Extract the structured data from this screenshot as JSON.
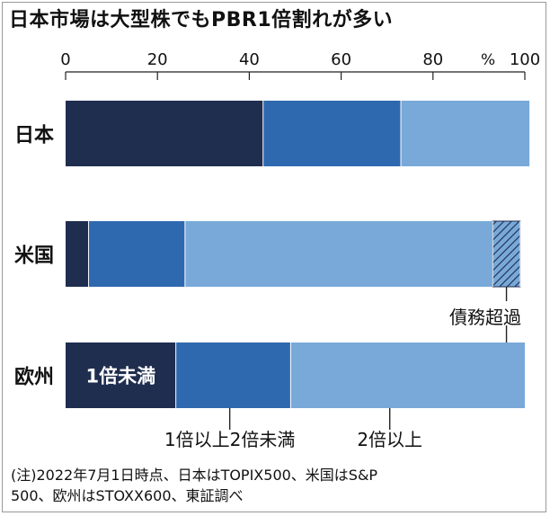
{
  "title": "日本市場は大型株でもPBR1倍割れが多い",
  "notes": [
    "(注)2022年7月1日時点、日本はTOPIX500、米国はS&P",
    "500、欧州はSTOXX600、東証調べ"
  ],
  "chart_data": {
    "type": "bar",
    "orientation": "horizontal",
    "stacked": true,
    "categories": [
      "日本",
      "米国",
      "欧州"
    ],
    "x_ticks": [
      "0",
      "20",
      "40",
      "60",
      "80",
      "100"
    ],
    "unit_label": "%",
    "xlim": [
      0,
      100
    ],
    "series": [
      {
        "name": "1倍未満",
        "color": "#1f2d4f",
        "values": [
          43,
          5,
          24
        ]
      },
      {
        "name": "1倍以上2倍未満",
        "color": "#2e69b0",
        "values": [
          30,
          21,
          25
        ]
      },
      {
        "name": "2倍以上",
        "color": "#78a9d9",
        "values": [
          28,
          67,
          51
        ]
      },
      {
        "name": "債務超過",
        "color": "#78a9d9",
        "pattern": "hatch",
        "values": [
          0,
          6,
          0
        ]
      }
    ],
    "legend": "inline labels",
    "grid": false
  }
}
